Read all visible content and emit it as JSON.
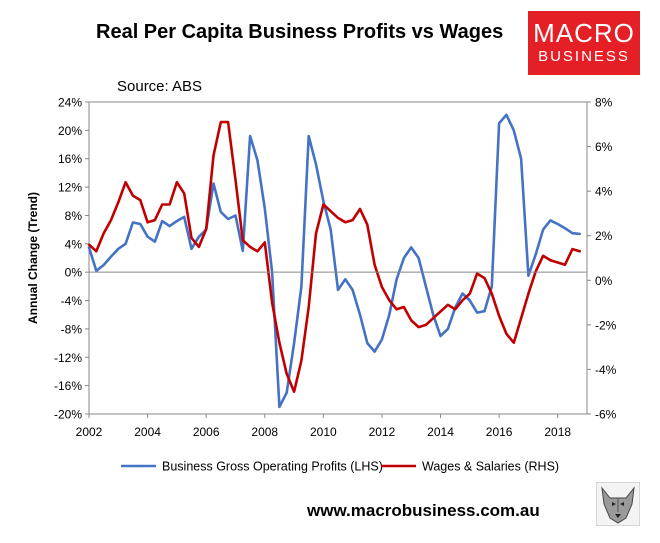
{
  "chart_data": {
    "type": "line",
    "title": "Real Per Capita Business Profits vs Wages",
    "source": "Source: ABS",
    "ylabel": "Annual Change (Trend)",
    "website": "www.macrobusiness.com.au",
    "logo": {
      "line1": "MACRO",
      "line2": "BUSINESS"
    },
    "xlim": [
      2002,
      2019
    ],
    "ylim_left": [
      -20,
      24
    ],
    "ylim_right": [
      -6,
      8
    ],
    "x_ticks": [
      "2002",
      "2004",
      "2006",
      "2008",
      "2010",
      "2012",
      "2014",
      "2016",
      "2018"
    ],
    "y_ticks_left": [
      "24%",
      "20%",
      "16%",
      "12%",
      "8%",
      "4%",
      "0%",
      "-4%",
      "-8%",
      "-12%",
      "-16%",
      "-20%"
    ],
    "y_ticks_right": [
      "8%",
      "6%",
      "4%",
      "2%",
      "0%",
      "-2%",
      "-4%",
      "-6%"
    ],
    "legend_position": "bottom",
    "series": [
      {
        "name": "Business Gross Operating Profits (LHS)",
        "axis": "left",
        "color": "#4472c4",
        "x": [
          2002.0,
          2002.25,
          2002.5,
          2002.75,
          2003.0,
          2003.25,
          2003.5,
          2003.75,
          2004.0,
          2004.25,
          2004.5,
          2004.75,
          2005.0,
          2005.25,
          2005.5,
          2005.75,
          2006.0,
          2006.25,
          2006.5,
          2006.75,
          2007.0,
          2007.25,
          2007.5,
          2007.75,
          2008.0,
          2008.25,
          2008.5,
          2008.75,
          2009.0,
          2009.25,
          2009.5,
          2009.75,
          2010.0,
          2010.25,
          2010.5,
          2010.75,
          2011.0,
          2011.25,
          2011.5,
          2011.75,
          2012.0,
          2012.25,
          2012.5,
          2012.75,
          2013.0,
          2013.25,
          2013.5,
          2013.75,
          2014.0,
          2014.25,
          2014.5,
          2014.75,
          2015.0,
          2015.25,
          2015.5,
          2015.75,
          2016.0,
          2016.25,
          2016.5,
          2016.75,
          2017.0,
          2017.25,
          2017.5,
          2017.75,
          2018.0,
          2018.25,
          2018.5,
          2018.75
        ],
        "values": [
          3.5,
          0.2,
          1.0,
          2.2,
          3.3,
          4.0,
          7.0,
          6.8,
          5.0,
          4.3,
          7.2,
          6.5,
          7.2,
          7.8,
          3.3,
          5.0,
          6.0,
          12.5,
          8.5,
          7.5,
          8.0,
          3.0,
          19.2,
          15.8,
          9.0,
          0.0,
          -19.0,
          -17.0,
          -10.0,
          -2.0,
          19.2,
          15.2,
          10.0,
          6.0,
          -2.5,
          -1.0,
          -2.5,
          -6.0,
          -10.0,
          -11.2,
          -9.5,
          -6.0,
          -1.0,
          2.0,
          3.5,
          2.0,
          -2.0,
          -6.0,
          -9.0,
          -8.0,
          -5.0,
          -3.0,
          -4.0,
          -5.7,
          -5.5,
          -2.0,
          21.0,
          22.2,
          20.0,
          16.0,
          -0.5,
          2.5,
          6.0,
          7.3,
          6.8,
          6.2,
          5.5,
          5.4
        ]
      },
      {
        "name": "Wages & Salaries (RHS)",
        "axis": "right",
        "color": "#c00000",
        "x": [
          2002.0,
          2002.25,
          2002.5,
          2002.75,
          2003.0,
          2003.25,
          2003.5,
          2003.75,
          2004.0,
          2004.25,
          2004.5,
          2004.75,
          2005.0,
          2005.25,
          2005.5,
          2005.75,
          2006.0,
          2006.25,
          2006.5,
          2006.75,
          2007.0,
          2007.25,
          2007.5,
          2007.75,
          2008.0,
          2008.25,
          2008.5,
          2008.75,
          2009.0,
          2009.25,
          2009.5,
          2009.75,
          2010.0,
          2010.25,
          2010.5,
          2010.75,
          2011.0,
          2011.25,
          2011.5,
          2011.75,
          2012.0,
          2012.25,
          2012.5,
          2012.75,
          2013.0,
          2013.25,
          2013.5,
          2013.75,
          2014.0,
          2014.25,
          2014.5,
          2014.75,
          2015.0,
          2015.25,
          2015.5,
          2015.75,
          2016.0,
          2016.25,
          2016.5,
          2016.75,
          2017.0,
          2017.25,
          2017.5,
          2017.75,
          2018.0,
          2018.25,
          2018.5,
          2018.75
        ],
        "values": [
          1.6,
          1.3,
          2.1,
          2.7,
          3.5,
          4.4,
          3.8,
          3.6,
          2.6,
          2.7,
          3.4,
          3.4,
          4.4,
          3.9,
          1.9,
          1.5,
          2.3,
          5.6,
          7.1,
          7.1,
          4.5,
          1.8,
          1.5,
          1.3,
          1.7,
          -1.0,
          -2.8,
          -4.2,
          -5.0,
          -3.6,
          -1.2,
          2.1,
          3.4,
          3.1,
          2.8,
          2.6,
          2.7,
          3.2,
          2.5,
          0.7,
          -0.3,
          -0.9,
          -1.3,
          -1.2,
          -1.8,
          -2.1,
          -2.0,
          -1.7,
          -1.4,
          -1.1,
          -1.3,
          -0.9,
          -0.6,
          0.3,
          0.1,
          -0.6,
          -1.6,
          -2.4,
          -2.8,
          -1.7,
          -0.6,
          0.4,
          1.1,
          0.9,
          0.8,
          0.7,
          1.4,
          1.3
        ]
      }
    ]
  }
}
